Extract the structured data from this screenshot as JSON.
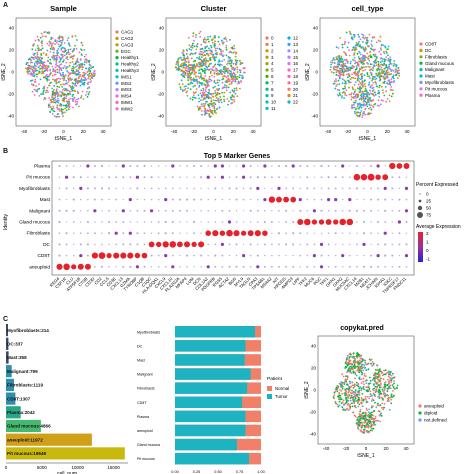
{
  "panels": {
    "a": "A",
    "b": "B",
    "c": "C"
  },
  "tsne": {
    "xlabel": "tSNE_1",
    "ylabel": "tSNE_2",
    "xticks": [
      "-40",
      "-20",
      "0",
      "20",
      "40"
    ],
    "yticks": [
      "40",
      "20",
      "0",
      "-20",
      "-40"
    ],
    "plots": [
      {
        "title": "Sample",
        "legend": [
          "CAG1",
          "CAG2",
          "CAG3",
          "EGC",
          "Healthy1",
          "Healthy2",
          "Healthy3",
          "IMS1",
          "IMS2",
          "IMS3",
          "IMS4",
          "IMW1",
          "IMW2"
        ],
        "colors": [
          "#f8766d",
          "#de8c00",
          "#b79f00",
          "#7cae00",
          "#00ba38",
          "#00c08b",
          "#00bfc4",
          "#00b4f0",
          "#619cff",
          "#c77cff",
          "#f564e3",
          "#ff64b0",
          "#e76bf3"
        ]
      },
      {
        "title": "Cluster",
        "legend": [
          "0",
          "1",
          "2",
          "3",
          "4",
          "5",
          "6",
          "7",
          "8",
          "9",
          "10",
          "11",
          "12",
          "13",
          "14",
          "15",
          "16",
          "17",
          "18",
          "19",
          "20",
          "21",
          "22"
        ],
        "colors": [
          "#f8766d",
          "#ea8331",
          "#d89000",
          "#c09b00",
          "#a3a500",
          "#7cae00",
          "#39b600",
          "#00bb4e",
          "#00bf7d",
          "#00c1a3",
          "#00bfc4",
          "#00bae0",
          "#00b0f6",
          "#35a2ff",
          "#9590ff",
          "#c77cff",
          "#e76bf3",
          "#fa62db",
          "#ff62bc",
          "#ff6c91",
          "#f8766d",
          "#d89000",
          "#00bfc4"
        ]
      },
      {
        "title": "cell_type",
        "legend": [
          "CD8T",
          "DC",
          "Fibroblasts",
          "Gland mucous",
          "Malignant",
          "Mast",
          "Myofibroblasts",
          "Pit mucous",
          "Plasma"
        ],
        "colors": [
          "#f8766d",
          "#d39200",
          "#93aa00",
          "#00ba38",
          "#00c19f",
          "#00b9e3",
          "#619cff",
          "#db72fb",
          "#ff61c3"
        ]
      }
    ]
  },
  "dotplot": {
    "title": "Top 5 Marker Genes",
    "ylabel": "Identity",
    "rows": [
      "Plasma",
      "Pit mucous",
      "Myofibroblasts",
      "Mast",
      "Malignant",
      "Gland mucous",
      "Fibroblasts",
      "DC",
      "CD8T",
      "aneuploid"
    ],
    "genes": [
      "REG4",
      "CSF1R",
      "CLU",
      "ATP5F1B",
      "CTSB",
      "CD3D",
      "CD2",
      "CCL5",
      "CD3E",
      "CXCL13",
      "GZMA",
      "TYROBP",
      "C1QB",
      "C1QC",
      "HLA-DQA1",
      "CXCL9",
      "CXCL10",
      "PLA2G2A",
      "MFAP4",
      "LUM",
      "DCN",
      "COL1A2",
      "PDGFRB",
      "RGS5",
      "ACTA2",
      "BGN",
      "MYL9",
      "TAGLN",
      "CPA3",
      "TPSAB1",
      "MS4A2",
      "KIT",
      "HPGDS",
      "AMPD3",
      "LIPF",
      "TFF2",
      "MUC6",
      "PGC",
      "TFF1",
      "GKN1",
      "GKN2",
      "MUC5AC",
      "CXCL14",
      "MZB1",
      "NEAT1",
      "JCHAIN",
      "IGHA1",
      "IGKC",
      "TNFRSF17",
      "FNDC11"
    ],
    "legend_pct_title": "Percent Expressed",
    "legend_pct_values": [
      "0",
      "25",
      "50",
      "75"
    ],
    "legend_expr_title": "Average Expression",
    "legend_expr_ticks": [
      "2",
      "1",
      "0",
      "-1"
    ],
    "colors": {
      "high": "#e5212b",
      "low": "#2b1fcf"
    }
  },
  "barplot": {
    "xlabel": "cell_num",
    "xticks": [
      "0",
      "5000",
      "10000",
      "15000"
    ],
    "bars": [
      {
        "label": "Myofibroblasts:214",
        "value": 214,
        "color": "#3a4a6b"
      },
      {
        "label": "DC:337",
        "value": 337,
        "color": "#3a4a6b"
      },
      {
        "label": "Mast:358",
        "value": 358,
        "color": "#3a4a6b"
      },
      {
        "label": "Malignant:799",
        "value": 799,
        "color": "#2f8eab"
      },
      {
        "label": "Fibroblasts:1119",
        "value": 1119,
        "color": "#2f8eab"
      },
      {
        "label": "CD8T:1307",
        "value": 1307,
        "color": "#2f8eab"
      },
      {
        "label": "Plasma:2042",
        "value": 2042,
        "color": "#27a688"
      },
      {
        "label": "Gland mucous:4866",
        "value": 4866,
        "color": "#43b86e"
      },
      {
        "label": "aneuploid:11972",
        "value": 11972,
        "color": "#d1a01b"
      },
      {
        "label": "Pit mucous:16549",
        "value": 16549,
        "color": "#c9b80e"
      }
    ]
  },
  "stacked": {
    "xlabel": "proportion",
    "categories": [
      "Myofibroblasts",
      "DC",
      "Mast",
      "Malignant",
      "Fibroblasts",
      "CD8T",
      "Plasma",
      "aneuploid",
      "Gland mucous",
      "Pit mucous"
    ],
    "normal_fraction": [
      0.93,
      0.82,
      0.81,
      0.88,
      0.84,
      0.78,
      0.82,
      0.82,
      0.72,
      0.86
    ],
    "legend_title": "Patient",
    "legend": [
      {
        "label": "Normal",
        "color": "#f08068"
      },
      {
        "label": "Tumor",
        "color": "#1eb3c0"
      }
    ],
    "xticks": [
      "0.00",
      "0.25",
      "0.50",
      "0.75",
      "1.00"
    ]
  },
  "copykat": {
    "title": "copykat.pred",
    "xlabel": "tSNE_1",
    "ylabel": "tSNE_2",
    "xticks": [
      "-40",
      "-20",
      "0",
      "20",
      "40"
    ],
    "yticks": [
      "40",
      "20",
      "0",
      "-20",
      "-40"
    ],
    "legend": [
      {
        "label": "aneuploid",
        "color": "#f8766d"
      },
      {
        "label": "diploid",
        "color": "#00ba38"
      },
      {
        "label": "not.defined",
        "color": "#619cff"
      }
    ]
  }
}
